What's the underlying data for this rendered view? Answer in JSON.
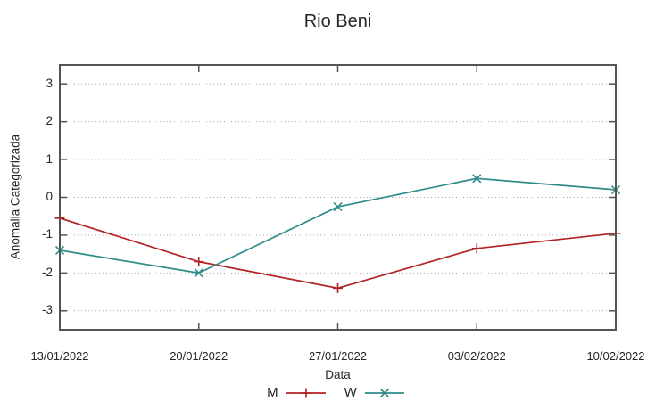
{
  "chart_data": {
    "type": "line",
    "title": "Rio Beni",
    "xlabel": "Data",
    "ylabel": "Anomalia Categorizada",
    "categories": [
      "13/01/2022",
      "20/01/2022",
      "27/01/2022",
      "03/02/2022",
      "10/02/2022"
    ],
    "series": [
      {
        "name": "M",
        "color": "#b22222",
        "marker": "plus",
        "values": [
          -0.55,
          -1.7,
          -2.4,
          -1.35,
          -0.95
        ]
      },
      {
        "name": "W",
        "color": "#2e8b8b",
        "marker": "cross",
        "values": [
          -1.4,
          -2.0,
          -0.25,
          0.5,
          0.2
        ]
      }
    ],
    "ylim": [
      -3.5,
      3.5
    ],
    "yticks": [
      -3,
      -2,
      -1,
      0,
      1,
      2,
      3
    ],
    "grid": "horizontal-dotted",
    "legend_position": "bottom-center",
    "colors": {
      "border": "#545454",
      "grid": "#aaaaaa",
      "text": "#262626",
      "background": "#ffffff"
    }
  }
}
